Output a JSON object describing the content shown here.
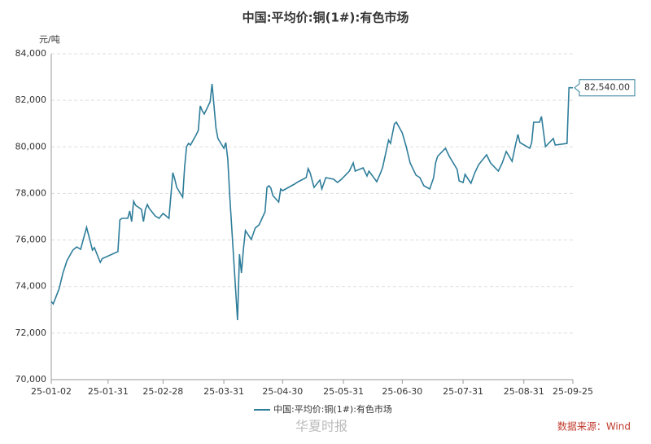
{
  "chart_data": {
    "type": "line",
    "title": "中国:平均价:铜(1#):有色市场",
    "y_unit": "元/吨",
    "source": "数据来源：Wind",
    "watermark": "华夏时报",
    "x": [
      "25-01-02",
      "25-01-03",
      "25-01-06",
      "25-01-08",
      "25-01-10",
      "25-01-13",
      "25-01-15",
      "25-01-17",
      "25-01-20",
      "25-01-22",
      "25-01-23",
      "25-01-24",
      "25-01-27",
      "25-01-28",
      "25-02-05",
      "25-02-06",
      "25-02-07",
      "25-02-10",
      "25-02-11",
      "25-02-12",
      "25-02-13",
      "25-02-14",
      "25-02-17",
      "25-02-18",
      "25-02-19",
      "25-02-20",
      "25-02-21",
      "25-02-24",
      "25-02-26",
      "25-02-28",
      "25-03-03",
      "25-03-05",
      "25-03-06",
      "25-03-07",
      "25-03-10",
      "25-03-11",
      "25-03-12",
      "25-03-13",
      "25-03-14",
      "25-03-17",
      "25-03-18",
      "25-03-19",
      "25-03-20",
      "25-03-21",
      "25-03-24",
      "25-03-25",
      "25-03-26",
      "25-03-27",
      "25-03-28",
      "25-03-31",
      "25-04-01",
      "25-04-02",
      "25-04-03",
      "25-04-07",
      "25-04-08",
      "25-04-09",
      "25-04-10",
      "25-04-11",
      "25-04-14",
      "25-04-16",
      "25-04-18",
      "25-04-21",
      "25-04-22",
      "25-04-23",
      "25-04-24",
      "25-04-25",
      "25-04-28",
      "25-04-29",
      "25-04-30",
      "25-05-06",
      "25-05-08",
      "25-05-12",
      "25-05-13",
      "25-05-14",
      "25-05-16",
      "25-05-19",
      "25-05-20",
      "25-05-22",
      "25-05-26",
      "25-05-28",
      "25-05-30",
      "25-06-03",
      "25-06-05",
      "25-06-06",
      "25-06-10",
      "25-06-12",
      "25-06-13",
      "25-06-17",
      "25-06-19",
      "25-06-20",
      "25-06-23",
      "25-06-24",
      "25-06-26",
      "25-06-27",
      "25-06-30",
      "25-07-02",
      "25-07-04",
      "25-07-07",
      "25-07-09",
      "25-07-11",
      "25-07-14",
      "25-07-16",
      "25-07-17",
      "25-07-18",
      "25-07-22",
      "25-07-24",
      "25-07-28",
      "25-07-29",
      "25-07-31",
      "25-08-01",
      "25-08-04",
      "25-08-06",
      "25-08-08",
      "25-08-12",
      "25-08-14",
      "25-08-18",
      "25-08-20",
      "25-08-22",
      "25-08-25",
      "25-08-27",
      "25-08-28",
      "25-08-29",
      "25-09-03",
      "25-09-04",
      "25-09-05",
      "25-09-08",
      "25-09-09",
      "25-09-11",
      "25-09-15",
      "25-09-16",
      "25-09-22",
      "25-09-23",
      "25-09-25"
    ],
    "series": [
      {
        "name": "中国:平均价:铜(1#):有色市场",
        "color": "#2e7d9a",
        "values": [
          73360,
          73255,
          73900,
          74600,
          75110,
          75565,
          75700,
          75600,
          76545,
          75900,
          75565,
          75670,
          75040,
          75200,
          75500,
          76860,
          76930,
          76930,
          77245,
          76790,
          77665,
          77490,
          77315,
          76790,
          77315,
          77525,
          77350,
          77035,
          76930,
          77140,
          76930,
          78890,
          78610,
          78260,
          77840,
          79135,
          80010,
          80150,
          80080,
          80535,
          80710,
          81760,
          81550,
          81410,
          81935,
          82705,
          81760,
          80815,
          80360,
          79940,
          80185,
          79485,
          77910,
          72555,
          75390,
          74585,
          75635,
          76405,
          76020,
          76510,
          76650,
          77210,
          78260,
          78330,
          78225,
          77910,
          77630,
          78190,
          78120,
          78400,
          78505,
          78680,
          79065,
          78890,
          78260,
          78575,
          78190,
          78680,
          78610,
          78470,
          78610,
          78960,
          79310,
          78960,
          79100,
          78750,
          78960,
          78505,
          78890,
          79135,
          80290,
          80150,
          80990,
          81060,
          80605,
          80010,
          79310,
          78785,
          78680,
          78330,
          78190,
          78680,
          79310,
          79590,
          79940,
          79590,
          79030,
          78540,
          78470,
          78820,
          78435,
          78890,
          79240,
          79660,
          79310,
          78960,
          79310,
          79800,
          79380,
          80185,
          80535,
          80185,
          79940,
          80185,
          81060,
          81060,
          81305,
          80010,
          80360,
          80080,
          80150,
          82540,
          82540
        ]
      }
    ],
    "end_label": {
      "value": 82540,
      "label": "82,540.00"
    },
    "xlim": [
      "25-01-02",
      "25-09-25"
    ],
    "xticks": [
      "25-01-02",
      "25-01-31",
      "25-02-28",
      "25-03-31",
      "25-04-30",
      "25-05-31",
      "25-06-30",
      "25-07-31",
      "25-08-31",
      "25-09-25"
    ],
    "ylim": [
      70000,
      84000
    ],
    "yticks": [
      {
        "value": 70000,
        "label": "70,000"
      },
      {
        "value": 72000,
        "label": "72,000"
      },
      {
        "value": 74000,
        "label": "74,000"
      },
      {
        "value": 76000,
        "label": "76,000"
      },
      {
        "value": 78000,
        "label": "78,000"
      },
      {
        "value": 80000,
        "label": "80,000"
      },
      {
        "value": 82000,
        "label": "82,000"
      },
      {
        "value": 84000,
        "label": "84,000"
      }
    ],
    "grid": true,
    "legend": "bottom"
  }
}
